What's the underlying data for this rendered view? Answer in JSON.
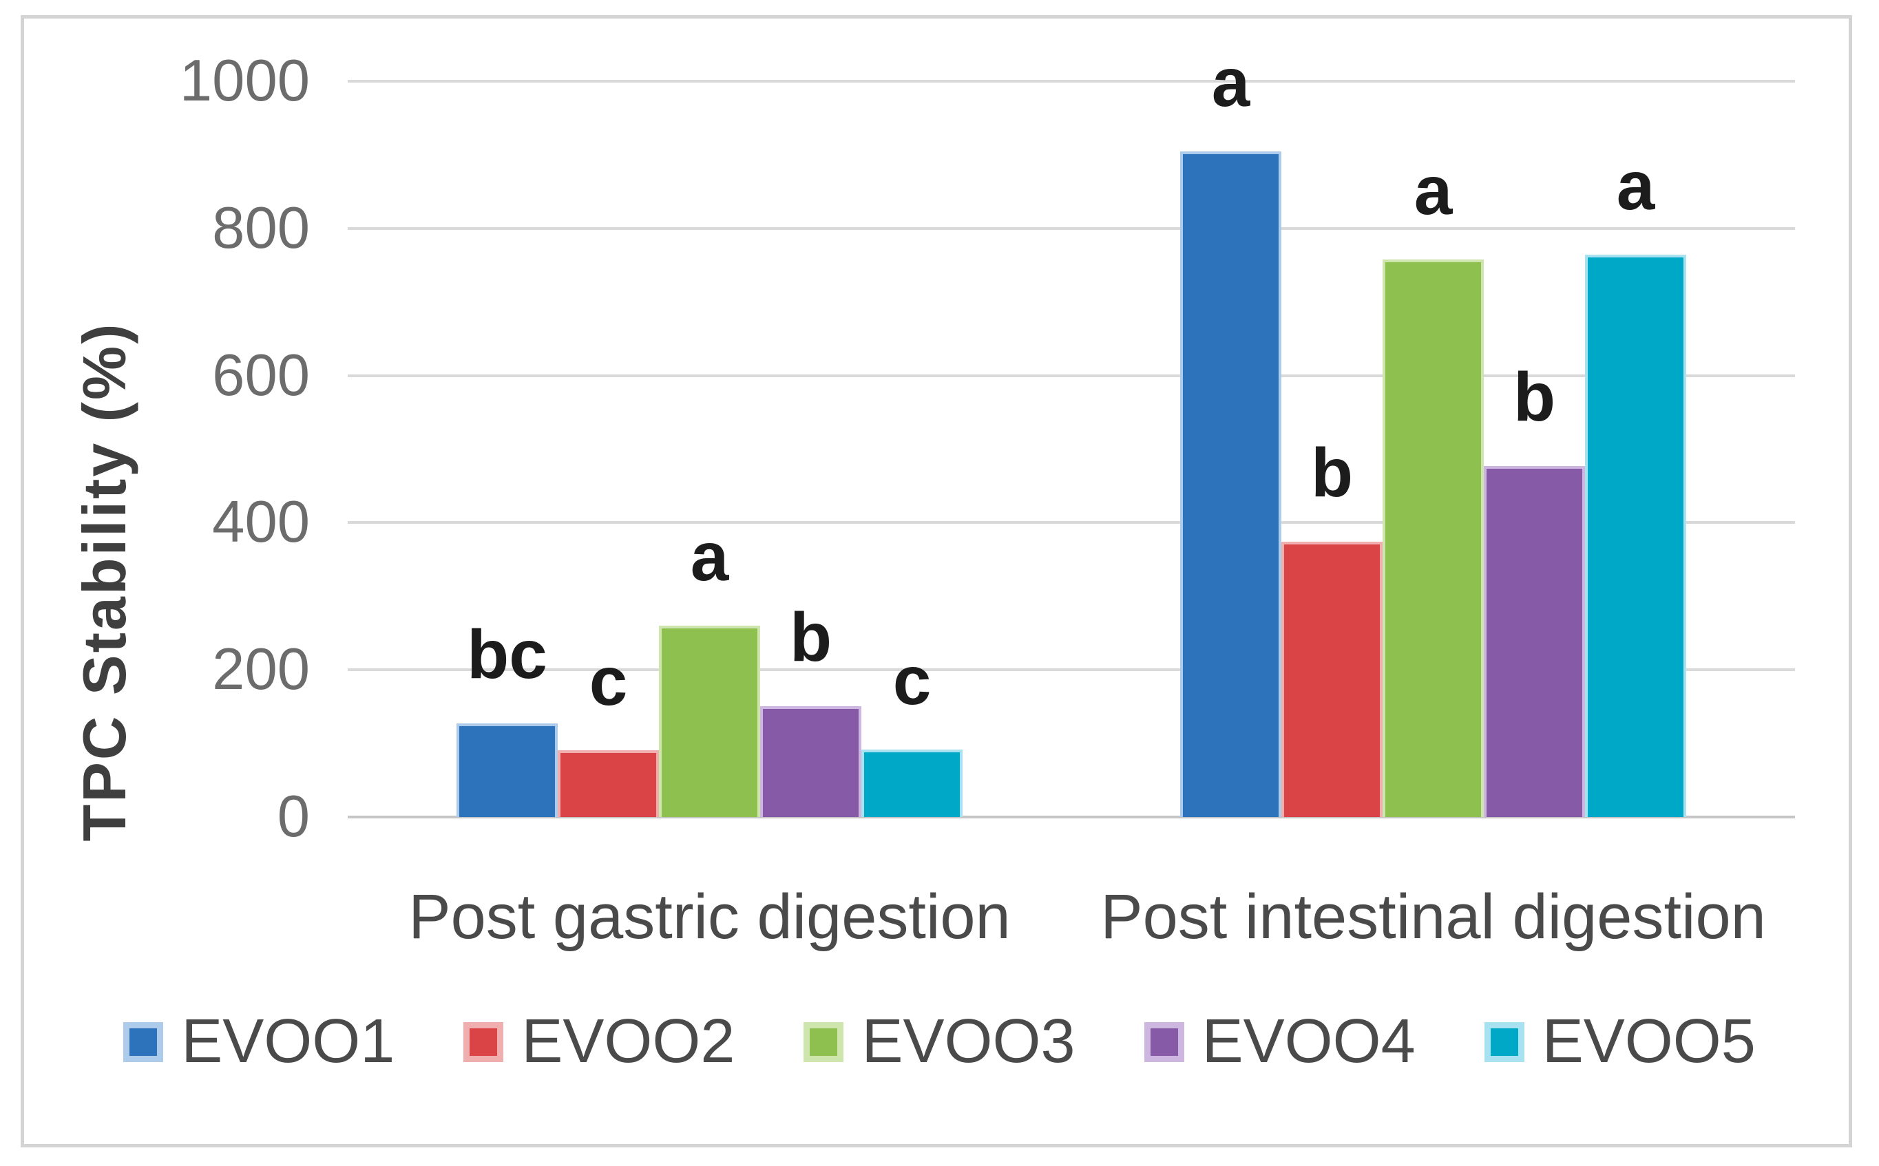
{
  "figure": {
    "background": "#FFFFFF",
    "border_color": "#D4D4D4"
  },
  "chart_data": {
    "type": "bar",
    "title": "",
    "xlabel": "",
    "ylabel": "TPC Stability (%)",
    "ylim": [
      0,
      1000
    ],
    "ytick_step": 200,
    "yticks": [
      "0",
      "200",
      "400",
      "600",
      "800",
      "1000"
    ],
    "grid": "horizontal gridlines on, no vertical axis line",
    "legend_position": "bottom",
    "categories": [
      "Post gastric digestion",
      "Post intestinal digestion"
    ],
    "series": [
      {
        "name": "EVOO1",
        "color": "#2C73BC",
        "edge_color": "#ADCBEA",
        "values": [
          127,
          905
        ],
        "significance_letters": [
          "bc",
          "a"
        ]
      },
      {
        "name": "EVOO2",
        "color": "#DB4446",
        "edge_color": "#F1AEAE",
        "values": [
          91,
          374
        ],
        "significance_letters": [
          "c",
          "b"
        ]
      },
      {
        "name": "EVOO3",
        "color": "#8DC04E",
        "edge_color": "#CEE5AE",
        "values": [
          260,
          758
        ],
        "significance_letters": [
          "a",
          "a"
        ]
      },
      {
        "name": "EVOO4",
        "color": "#875AA8",
        "edge_color": "#CDB6E0",
        "values": [
          151,
          477
        ],
        "significance_letters": [
          "b",
          "b"
        ]
      },
      {
        "name": "EVOO5",
        "color": "#00A8C8",
        "edge_color": "#A8E1EF",
        "values": [
          92,
          764
        ],
        "significance_letters": [
          "c",
          "a"
        ]
      }
    ],
    "colors": {
      "gridline": "#D9D9D9",
      "axis_line": "#C6C6C6",
      "tick_label": "#6C6C6C",
      "category_label": "#4A4A4A",
      "legend_label": "#4A4A4A",
      "axis_title": "#3F3F3F",
      "letter": "#1C1C1C"
    }
  }
}
